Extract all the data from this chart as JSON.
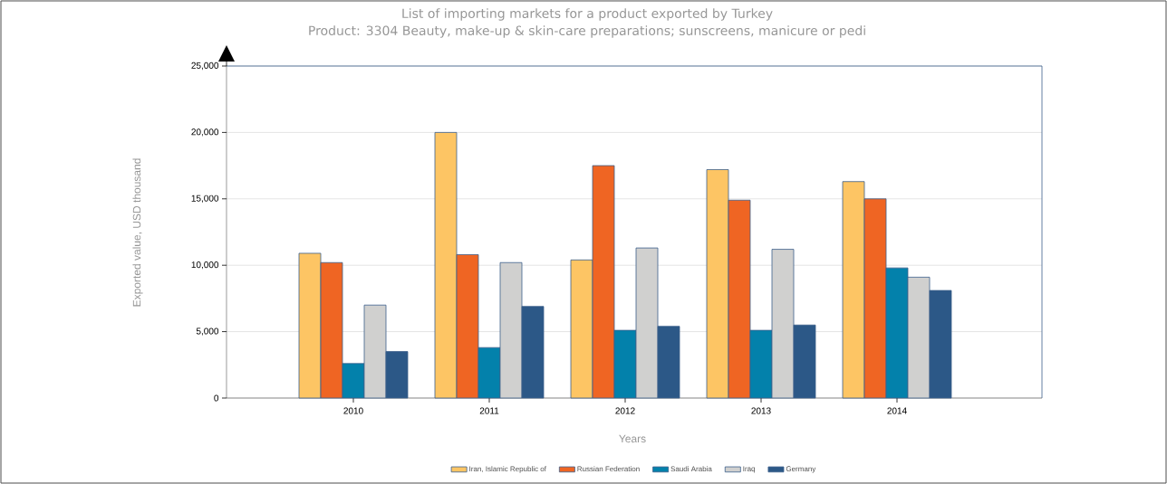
{
  "chart_data": {
    "type": "bar",
    "title": "List of importing markets for a product exported by Turkey",
    "subtitle": "Product: 3304 Beauty, make-up & skin-care preparations; sunscreens, manicure or pedi",
    "xlabel": "Years",
    "ylabel": "Exported value, USD thousand",
    "categories": [
      "2010",
      "2011",
      "2012",
      "2013",
      "2014"
    ],
    "series": [
      {
        "name": "Iran, Islamic Republic of",
        "color": "#fdc564",
        "values": [
          10900,
          20000,
          10400,
          17200,
          16300
        ]
      },
      {
        "name": "Russian Federation",
        "color": "#ef6523",
        "values": [
          10200,
          10800,
          17500,
          14900,
          15000
        ]
      },
      {
        "name": "Saudi Arabia",
        "color": "#0381ab",
        "values": [
          2600,
          3800,
          5100,
          5100,
          9800
        ]
      },
      {
        "name": "Iraq",
        "color": "#d0d0cf",
        "values": [
          7000,
          10200,
          11300,
          11200,
          9100
        ]
      },
      {
        "name": "Germany",
        "color": "#2c5887",
        "values": [
          3500,
          6900,
          5400,
          5500,
          8100
        ]
      }
    ],
    "ylim": [
      0,
      25000
    ],
    "yticks": [
      0,
      {
        "value": 5000,
        "label": "5,000"
      },
      {
        "value": 10000,
        "label": "10,000"
      },
      {
        "value": 15000,
        "label": "15,000"
      },
      {
        "value": 20000,
        "label": "20,000"
      },
      {
        "value": 25000,
        "label": "25,000"
      }
    ],
    "grid": "y",
    "legend": "bottom"
  }
}
